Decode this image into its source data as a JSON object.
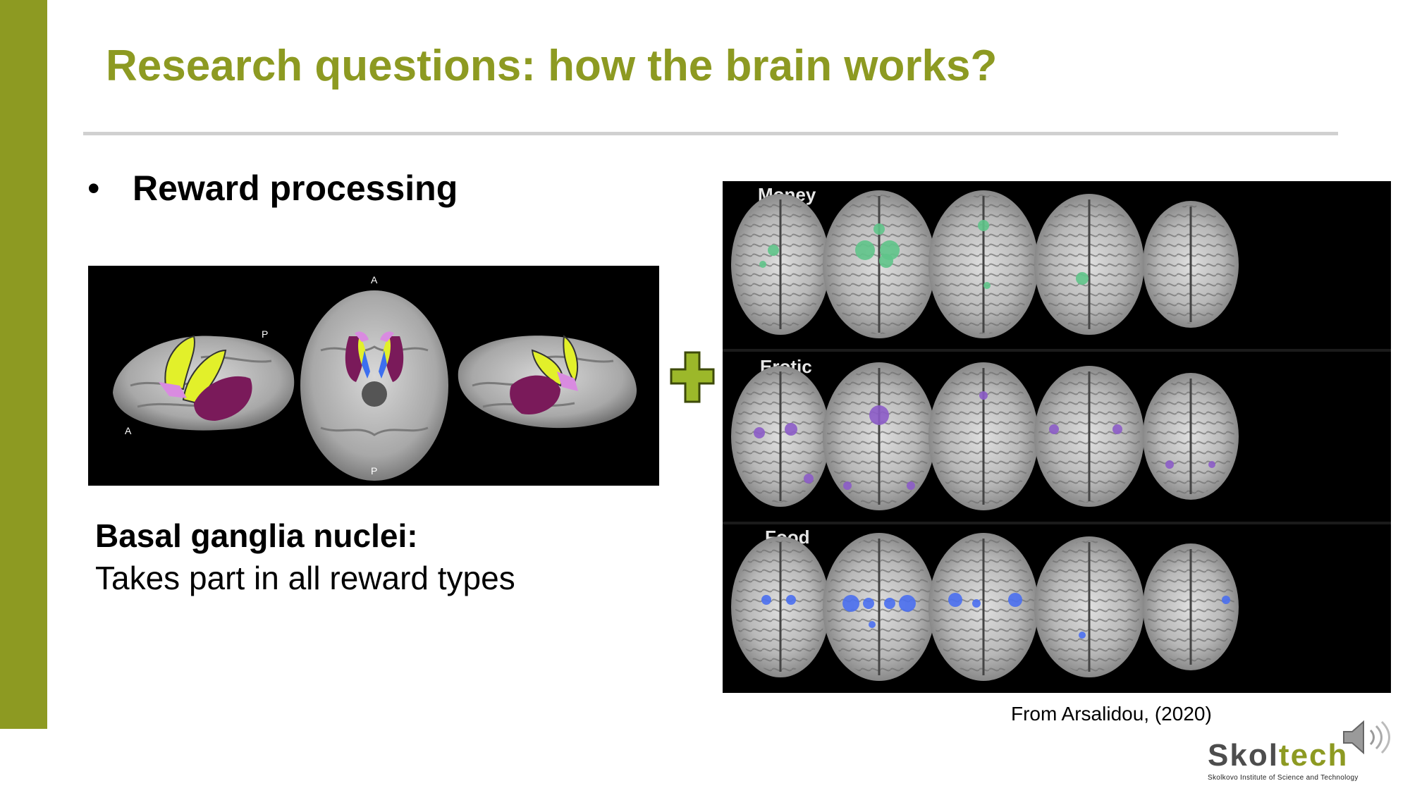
{
  "slide": {
    "title": "Research questions: how the brain works?",
    "bullet": {
      "marker": "•",
      "text": "Reward processing"
    },
    "basal_ganglia": {
      "title": "Basal ganglia nuclei:",
      "description": "Takes part in all reward types",
      "image_labels": {
        "left_a": "A",
        "left_p": "P",
        "top_a": "A",
        "bottom_p": "P"
      }
    },
    "mri": {
      "rows": [
        {
          "label": "Money",
          "color": "#5fc48a"
        },
        {
          "label": "Erotic",
          "color": "#8c5cc8"
        },
        {
          "label": "Food",
          "color": "#4a6ff0"
        }
      ]
    },
    "caption": "From Arsalidou, (2020)",
    "logo": {
      "word_part1": "Skol",
      "word_part2": "tech",
      "subtitle": "Skolkovo Institute of Science and Technology"
    }
  },
  "colors": {
    "accent": "#8d9a22",
    "plus": "#9cb82a",
    "logo_grey": "#4d4d4d",
    "logo_green": "#8d9a22"
  },
  "icons": {
    "plus": "plus-icon",
    "speaker": "speaker-icon"
  }
}
